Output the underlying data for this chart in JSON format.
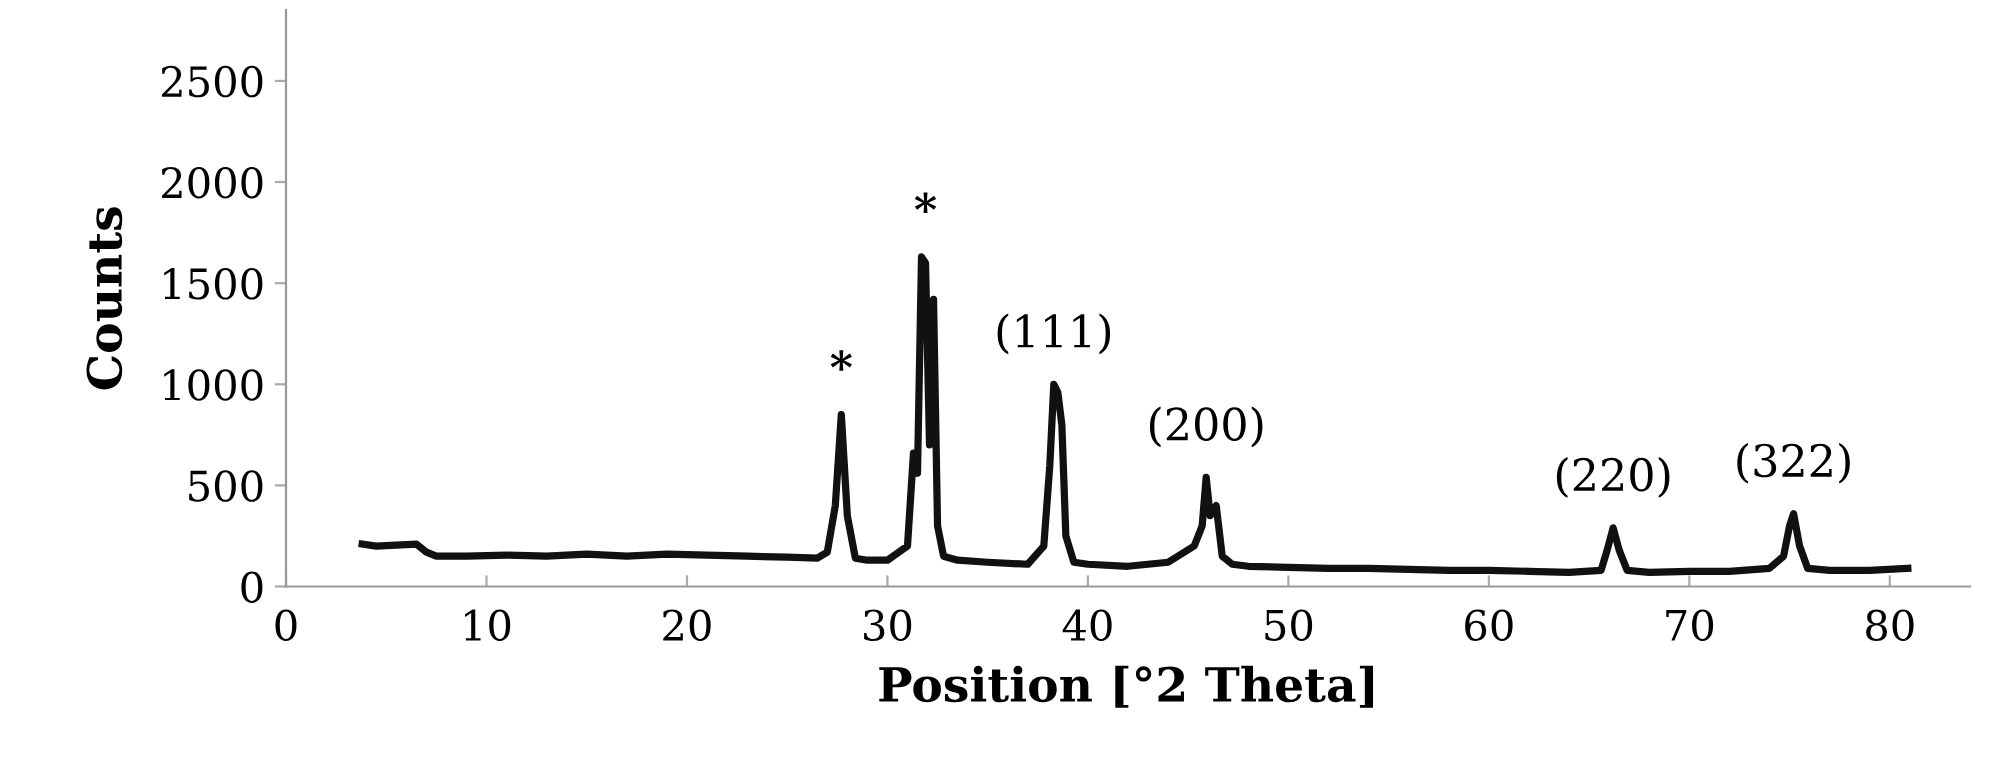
{
  "chart_data": {
    "type": "line",
    "xlabel": "Position [°2 Theta]",
    "ylabel": "Counts",
    "xlim": [
      0,
      84
    ],
    "ylim": [
      0,
      2850
    ],
    "xticks": [
      0,
      10,
      20,
      30,
      40,
      50,
      60,
      70,
      80
    ],
    "yticks": [
      0,
      500,
      1000,
      1500,
      2000,
      2500
    ],
    "grid": false,
    "legend": false,
    "marker": "none",
    "line_style": "solid",
    "series": [
      {
        "color": "#111111",
        "x": [
          3.8,
          4.5,
          5.5,
          6.5,
          7.0,
          7.5,
          9,
          11,
          13,
          15,
          17,
          19,
          21,
          23,
          25,
          26.5,
          27.0,
          27.4,
          27.7,
          28.0,
          28.4,
          29,
          30,
          31.0,
          31.3,
          31.5,
          31.7,
          31.9,
          32.1,
          32.3,
          32.5,
          32.8,
          33.5,
          35,
          37,
          37.8,
          38.1,
          38.3,
          38.5,
          38.7,
          38.9,
          39.3,
          40,
          42,
          44,
          45.3,
          45.7,
          45.9,
          46.1,
          46.4,
          46.7,
          47.2,
          48,
          50,
          52,
          54,
          56,
          58,
          60,
          62,
          64,
          65.6,
          65.9,
          66.2,
          66.5,
          66.9,
          68,
          70,
          72,
          74,
          74.7,
          75.0,
          75.2,
          75.5,
          75.9,
          77,
          79,
          80.9
        ],
        "values": [
          210,
          200,
          205,
          210,
          170,
          150,
          150,
          155,
          150,
          160,
          150,
          160,
          155,
          150,
          145,
          140,
          170,
          400,
          850,
          350,
          140,
          130,
          130,
          200,
          660,
          560,
          1630,
          1600,
          700,
          1420,
          300,
          150,
          130,
          120,
          110,
          200,
          600,
          1000,
          960,
          800,
          250,
          120,
          110,
          100,
          120,
          200,
          300,
          540,
          350,
          400,
          150,
          110,
          100,
          95,
          90,
          90,
          85,
          80,
          80,
          75,
          70,
          80,
          180,
          290,
          180,
          80,
          70,
          75,
          75,
          90,
          150,
          300,
          360,
          200,
          90,
          80,
          80,
          90
        ]
      }
    ],
    "annotations": [
      {
        "text": "*",
        "x": 27.7,
        "y": 850
      },
      {
        "text": "*",
        "x": 31.9,
        "y": 1630
      },
      {
        "text": "(111)",
        "x": 38.3,
        "y": 1000
      },
      {
        "text": "(200)",
        "x": 45.9,
        "y": 540
      },
      {
        "text": "(220)",
        "x": 66.2,
        "y": 290
      },
      {
        "text": "(322)",
        "x": 75.2,
        "y": 360
      }
    ]
  }
}
